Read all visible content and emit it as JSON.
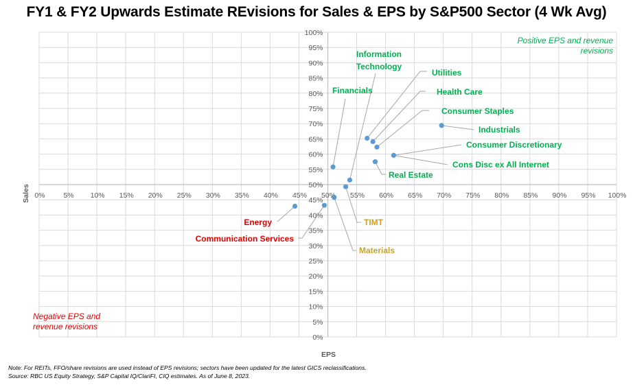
{
  "chart_data": {
    "type": "scatter",
    "title": "FY1 & FY2 Upwards Estimate REvisions for Sales & EPS by S&P500 Sector (4 Wk Avg)",
    "xlabel": "EPS",
    "ylabel": "Sales",
    "xlim": [
      0,
      100
    ],
    "ylim": [
      0,
      100
    ],
    "x_ticks": [
      "0%",
      "5%",
      "10%",
      "15%",
      "20%",
      "25%",
      "30%",
      "35%",
      "40%",
      "45%",
      "50%",
      "55%",
      "60%",
      "65%",
      "70%",
      "75%",
      "80%",
      "85%",
      "90%",
      "95%",
      "100%"
    ],
    "y_ticks": [
      "0%",
      "5%",
      "10%",
      "15%",
      "20%",
      "25%",
      "30%",
      "35%",
      "40%",
      "45%",
      "50%",
      "55%",
      "60%",
      "65%",
      "70%",
      "75%",
      "80%",
      "85%",
      "90%",
      "95%",
      "100%"
    ],
    "grid": true,
    "axes_cross_at": [
      50,
      50
    ],
    "point_color": "#5b9bd5",
    "points": [
      {
        "label": "Information Technology",
        "x": 53.8,
        "y": 51.5,
        "color": "#00b050"
      },
      {
        "label": "Utilities",
        "x": 56.8,
        "y": 65.2,
        "color": "#00b050"
      },
      {
        "label": "Health Care",
        "x": 57.8,
        "y": 64.1,
        "color": "#00b050"
      },
      {
        "label": "Consumer Staples",
        "x": 58.5,
        "y": 62.3,
        "color": "#00b050"
      },
      {
        "label": "Financials",
        "x": 50.9,
        "y": 55.8,
        "color": "#00b050"
      },
      {
        "label": "Industrials",
        "x": 69.7,
        "y": 69.4,
        "color": "#00b050"
      },
      {
        "label": "Consumer Discretionary",
        "x": 61.4,
        "y": 59.6,
        "color": "#00b050"
      },
      {
        "label": "Cons Disc ex All Internet",
        "x": 61.4,
        "y": 59.6,
        "color": "#00b050"
      },
      {
        "label": "Real Estate",
        "x": 58.2,
        "y": 57.5,
        "color": "#00b050"
      },
      {
        "label": "TIMT",
        "x": 53.1,
        "y": 49.3,
        "color": "#c9a227"
      },
      {
        "label": "Materials",
        "x": 51.1,
        "y": 45.8,
        "color": "#c9a227"
      },
      {
        "label": "Energy",
        "x": 44.3,
        "y": 42.9,
        "color": "#e00000"
      },
      {
        "label": "Communication Services",
        "x": 49.4,
        "y": 43.2,
        "color": "#e00000"
      }
    ],
    "annotations": {
      "top_right": {
        "lines": [
          "Positive EPS and revenue",
          "revisions"
        ],
        "color": "#00b050"
      },
      "bottom_left": {
        "lines": [
          "Negative EPS and",
          "revenue revisions"
        ],
        "color": "#e00000"
      }
    }
  },
  "notes": [
    "Note: For REITs, FFO/share revisions are used instead of EPS revisions; sectors have been updated for the latest GICS reclassifications.",
    "Source: RBC US Equity Strategy, S&P Capital IQ/ClariFI, CIQ estimates. As of June 8, 2023."
  ]
}
